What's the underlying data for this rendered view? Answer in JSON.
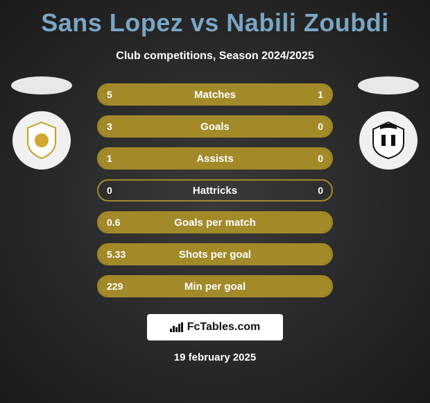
{
  "title": "Sans Lopez vs Nabili Zoubdi",
  "subtitle": "Club competitions, Season 2024/2025",
  "colors": {
    "title": "#7aa6c4",
    "text": "#ffffff",
    "bar_fill": "#a38a29",
    "bar_border": "#a38a29",
    "footer_bg": "#ffffff",
    "footer_text": "#111111"
  },
  "stats": [
    {
      "label": "Matches",
      "left_val": "5",
      "right_val": "1",
      "left_pct": 83,
      "right_pct": 17
    },
    {
      "label": "Goals",
      "left_val": "3",
      "right_val": "0",
      "left_pct": 100,
      "right_pct": 0
    },
    {
      "label": "Assists",
      "left_val": "1",
      "right_val": "0",
      "left_pct": 100,
      "right_pct": 0
    },
    {
      "label": "Hattricks",
      "left_val": "0",
      "right_val": "0",
      "left_pct": 0,
      "right_pct": 0
    },
    {
      "label": "Goals per match",
      "left_val": "0.6",
      "right_val": "",
      "left_pct": 100,
      "right_pct": 0
    },
    {
      "label": "Shots per goal",
      "left_val": "5.33",
      "right_val": "",
      "left_pct": 100,
      "right_pct": 0
    },
    {
      "label": "Min per goal",
      "left_val": "229",
      "right_val": "",
      "left_pct": 100,
      "right_pct": 0
    }
  ],
  "footer_brand": "FcTables.com",
  "date": "19 february 2025",
  "crests": {
    "left_label": "Real Zaragoza",
    "right_label": "Albacete"
  }
}
